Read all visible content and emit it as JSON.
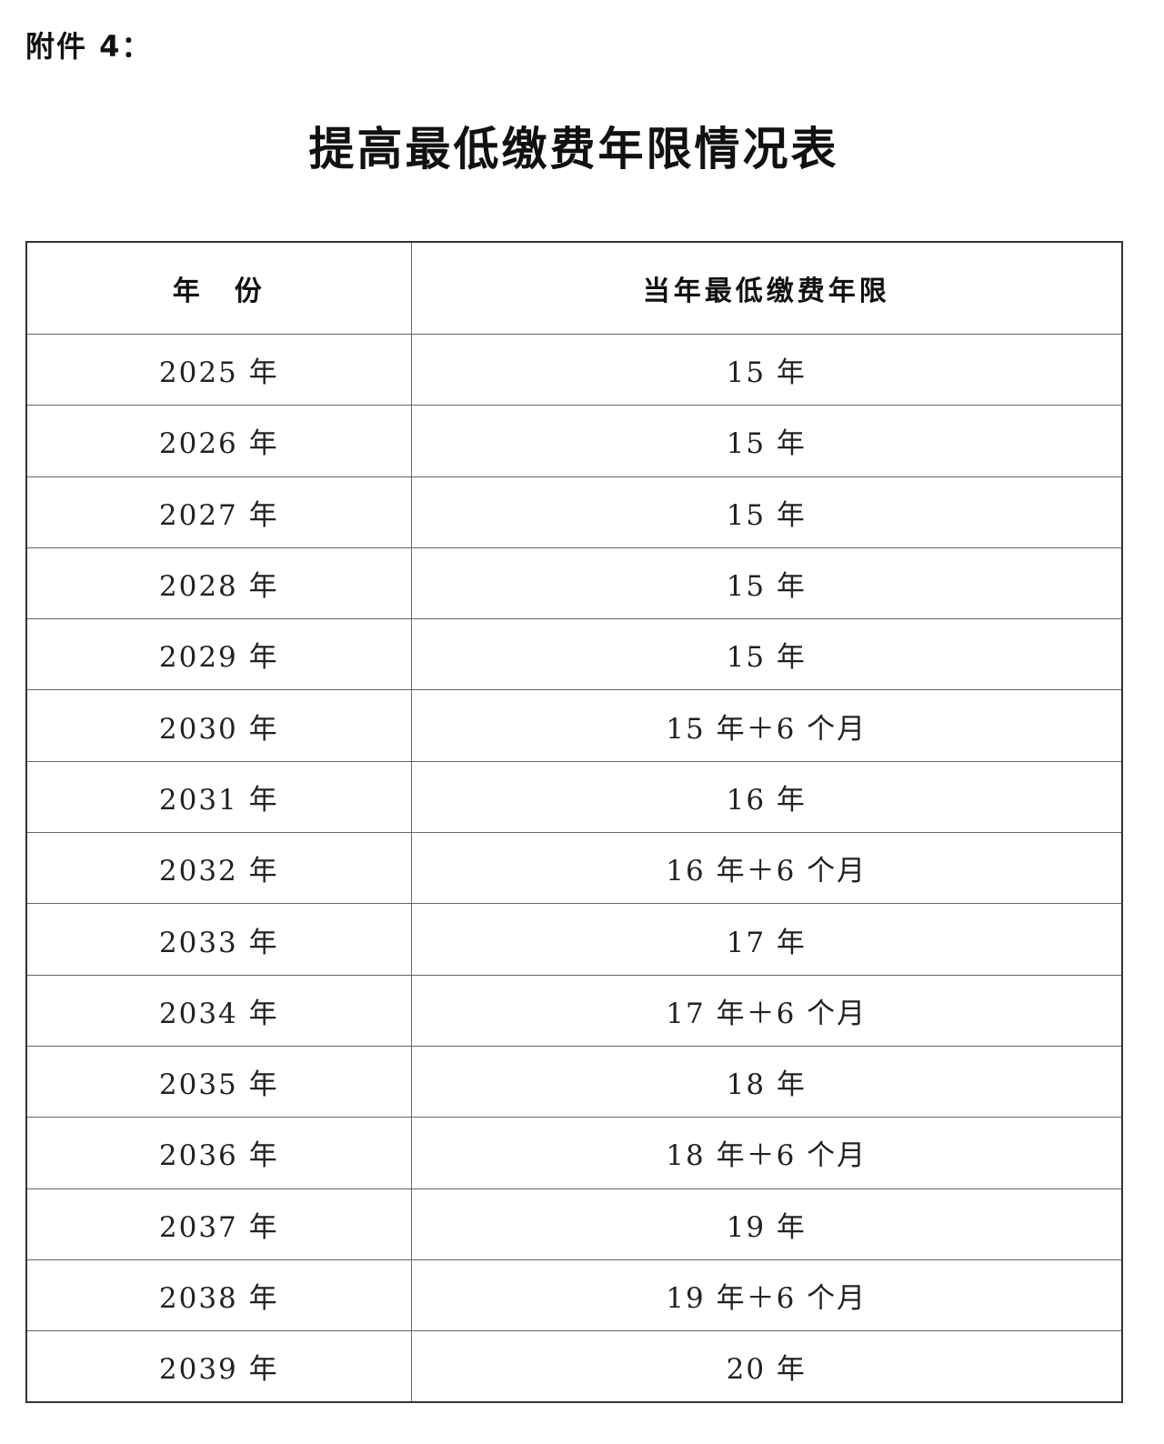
{
  "attachment_label": "附件 4：",
  "title": "提高最低缴费年限情况表",
  "table": {
    "headers": [
      "年　份",
      "当年最低缴费年限"
    ],
    "rows": [
      [
        "2025 年",
        "15 年"
      ],
      [
        "2026 年",
        "15 年"
      ],
      [
        "2027 年",
        "15 年"
      ],
      [
        "2028 年",
        "15 年"
      ],
      [
        "2029 年",
        "15 年"
      ],
      [
        "2030 年",
        "15 年＋6 个月"
      ],
      [
        "2031 年",
        "16 年"
      ],
      [
        "2032 年",
        "16 年＋6 个月"
      ],
      [
        "2033 年",
        "17 年"
      ],
      [
        "2034 年",
        "17 年＋6 个月"
      ],
      [
        "2035 年",
        "18 年"
      ],
      [
        "2036 年",
        "18 年＋6 个月"
      ],
      [
        "2037 年",
        "19 年"
      ],
      [
        "2038 年",
        "19 年＋6 个月"
      ],
      [
        "2039 年",
        "20 年"
      ]
    ]
  }
}
